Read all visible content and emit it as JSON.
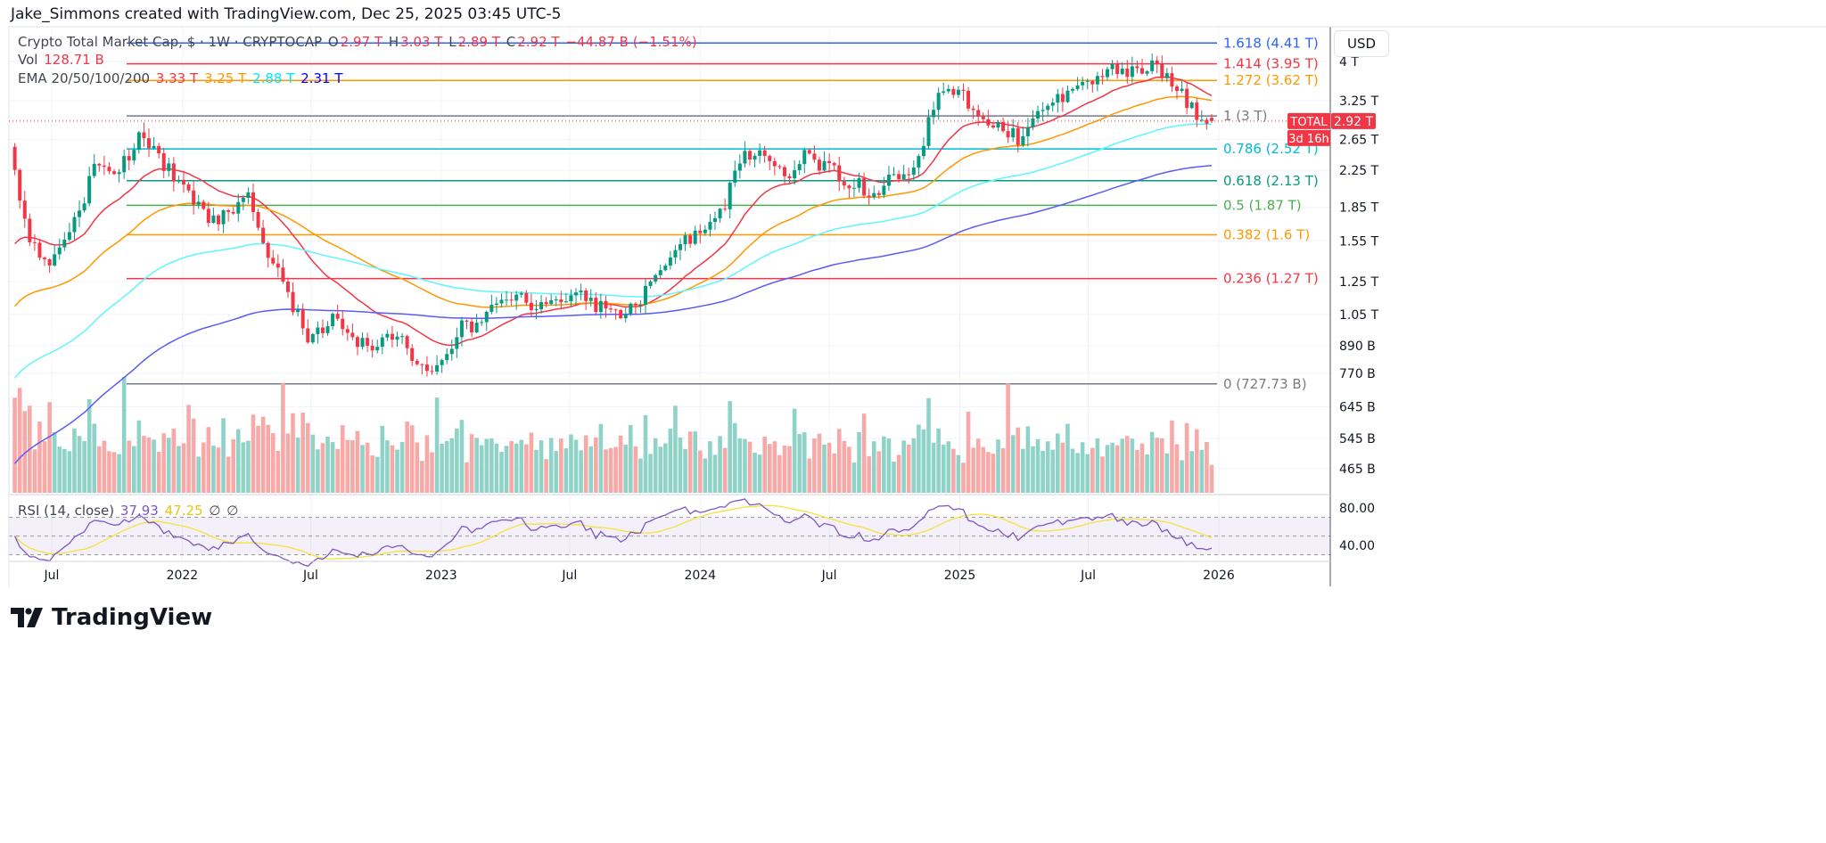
{
  "credit": "Jake_Simmons created with TradingView.com, Dec 25, 2025 03:45 UTC-5",
  "legend": {
    "symbol": "Crypto Total Market Cap, $ · 1W · CRYPTOCAP",
    "o_label": "O",
    "o": "2.97 T",
    "h_label": "H",
    "h": "3.03 T",
    "l_label": "L",
    "l": "2.89 T",
    "c_label": "C",
    "c": "2.92 T",
    "change": "−44.87 B (−1.51%)",
    "vol_label": "Vol",
    "vol": "128.71 B",
    "ema_label": "EMA 20/50/100/200",
    "ema_values": [
      {
        "value": "3.33 T",
        "color": "#f23645"
      },
      {
        "value": "3.25 T",
        "color": "#ff9800"
      },
      {
        "value": "2.88 T",
        "color": "#00e5ff"
      },
      {
        "value": "2.31 T",
        "color": "#0000ff"
      }
    ],
    "rsi_label": "RSI (14, close)",
    "rsi": "37.93",
    "rsi_ma": "47.25",
    "rsi_extra1": "∅",
    "rsi_extra2": "∅"
  },
  "currency": "USD",
  "price_tag": {
    "symbol": "TOTAL",
    "value": "2.92 T",
    "countdown": "3d 16h",
    "color": "#f23645"
  },
  "logo_text": "TradingView",
  "chart_data": {
    "type": "candlestick",
    "interval": "1W",
    "yscale": "log",
    "grid": true,
    "y_ticks": [
      {
        "label": "4 T",
        "value": 4.0
      },
      {
        "label": "3.25 T",
        "value": 3.25
      },
      {
        "label": "2.65 T",
        "value": 2.65
      },
      {
        "label": "2.25 T",
        "value": 2.25
      },
      {
        "label": "1.85 T",
        "value": 1.85
      },
      {
        "label": "1.55 T",
        "value": 1.55
      },
      {
        "label": "1.25 T",
        "value": 1.25
      },
      {
        "label": "1.05 T",
        "value": 1.05
      },
      {
        "label": "890 B",
        "value": 0.89
      },
      {
        "label": "770 B",
        "value": 0.77
      },
      {
        "label": "645 B",
        "value": 0.645
      },
      {
        "label": "545 B",
        "value": 0.545
      },
      {
        "label": "465 B",
        "value": 0.465
      }
    ],
    "x_ticks": [
      {
        "label": "Jul",
        "date": "2021-07-01"
      },
      {
        "label": "2022",
        "date": "2022-01-01"
      },
      {
        "label": "Jul",
        "date": "2022-07-01"
      },
      {
        "label": "2023",
        "date": "2023-01-01"
      },
      {
        "label": "Jul",
        "date": "2023-07-01"
      },
      {
        "label": "2024",
        "date": "2024-01-01"
      },
      {
        "label": "Jul",
        "date": "2024-07-01"
      },
      {
        "label": "2025",
        "date": "2025-01-01"
      },
      {
        "label": "Jul",
        "date": "2025-07-01"
      },
      {
        "label": "2026",
        "date": "2026-01-01"
      }
    ],
    "close_path_T": [
      [
        "2021-05-10",
        2.16
      ],
      [
        "2021-06-01",
        1.55
      ],
      [
        "2021-07-01",
        1.38
      ],
      [
        "2021-08-01",
        1.7
      ],
      [
        "2021-09-01",
        2.32
      ],
      [
        "2021-10-01",
        2.2
      ],
      [
        "2021-11-01",
        2.73
      ],
      [
        "2021-12-01",
        2.37
      ],
      [
        "2022-01-01",
        2.06
      ],
      [
        "2022-02-01",
        1.79
      ],
      [
        "2022-03-01",
        1.75
      ],
      [
        "2022-04-01",
        2.0
      ],
      [
        "2022-05-01",
        1.48
      ],
      [
        "2022-06-01",
        1.12
      ],
      [
        "2022-07-01",
        0.92
      ],
      [
        "2022-08-01",
        1.06
      ],
      [
        "2022-09-01",
        0.9
      ],
      [
        "2022-10-01",
        0.9
      ],
      [
        "2022-11-01",
        0.97
      ],
      [
        "2022-12-01",
        0.78
      ],
      [
        "2023-01-01",
        0.8
      ],
      [
        "2023-02-01",
        0.99
      ],
      [
        "2023-03-01",
        1.01
      ],
      [
        "2023-04-01",
        1.17
      ],
      [
        "2023-05-01",
        1.12
      ],
      [
        "2023-06-01",
        1.09
      ],
      [
        "2023-07-01",
        1.17
      ],
      [
        "2023-08-01",
        1.12
      ],
      [
        "2023-09-01",
        1.04
      ],
      [
        "2023-10-01",
        1.07
      ],
      [
        "2023-11-01",
        1.29
      ],
      [
        "2023-12-01",
        1.52
      ],
      [
        "2024-01-01",
        1.59
      ],
      [
        "2024-02-01",
        1.83
      ],
      [
        "2024-03-01",
        2.49
      ],
      [
        "2024-04-01",
        2.37
      ],
      [
        "2024-05-01",
        2.21
      ],
      [
        "2024-06-01",
        2.44
      ],
      [
        "2024-07-01",
        2.27
      ],
      [
        "2024-08-01",
        2.1
      ],
      [
        "2024-09-01",
        2.01
      ],
      [
        "2024-10-01",
        2.16
      ],
      [
        "2024-11-01",
        2.32
      ],
      [
        "2024-12-01",
        3.46
      ],
      [
        "2025-01-01",
        3.33
      ],
      [
        "2025-02-01",
        3.07
      ],
      [
        "2025-03-01",
        2.73
      ],
      [
        "2025-04-01",
        2.67
      ],
      [
        "2025-05-01",
        3.14
      ],
      [
        "2025-06-01",
        3.3
      ],
      [
        "2025-07-01",
        3.54
      ],
      [
        "2025-08-01",
        3.8
      ],
      [
        "2025-09-01",
        3.84
      ],
      [
        "2025-10-01",
        4.02
      ],
      [
        "2025-11-01",
        3.46
      ],
      [
        "2025-12-01",
        3.01
      ],
      [
        "2025-12-22",
        2.92
      ]
    ],
    "ema_periods": [
      20,
      50,
      100,
      200
    ],
    "ema_colors": [
      "#f23645",
      "#ff9800",
      "#5ff5ff",
      "#5b5bf5"
    ],
    "fib_levels": [
      {
        "label": "1.618 (4.41 T)",
        "value": 4.41,
        "color": "#2962ff"
      },
      {
        "label": "1.414 (3.95 T)",
        "value": 3.95,
        "color": "#f23645"
      },
      {
        "label": "1.272 (3.62 T)",
        "value": 3.62,
        "color": "#ff9800"
      },
      {
        "label": "1 (3 T)",
        "value": 3.0,
        "color": "#787b86"
      },
      {
        "label": "0.786 (2.52 T)",
        "value": 2.52,
        "color": "#00bcd4"
      },
      {
        "label": "0.618 (2.13 T)",
        "value": 2.13,
        "color": "#089981"
      },
      {
        "label": "0.5 (1.87 T)",
        "value": 1.87,
        "color": "#4caf50"
      },
      {
        "label": "0.382 (1.6 T)",
        "value": 1.6,
        "color": "#ff9800"
      },
      {
        "label": "0.236 (1.27 T)",
        "value": 1.27,
        "color": "#f23645"
      },
      {
        "label": "0 (727.73 B)",
        "value": 0.72773,
        "color": "#787b86"
      }
    ],
    "rsi_ticks": [
      {
        "label": "80.00",
        "value": 80
      },
      {
        "label": "40.00",
        "value": 40
      }
    ],
    "rsi_band": [
      30,
      70
    ],
    "colors": {
      "up": "#089981",
      "down": "#f23645",
      "vol_up": "#8fd3c8",
      "vol_down": "#f7a9a7",
      "rsi": "#7e57c2",
      "rsi_ma": "#f5e23c"
    }
  }
}
